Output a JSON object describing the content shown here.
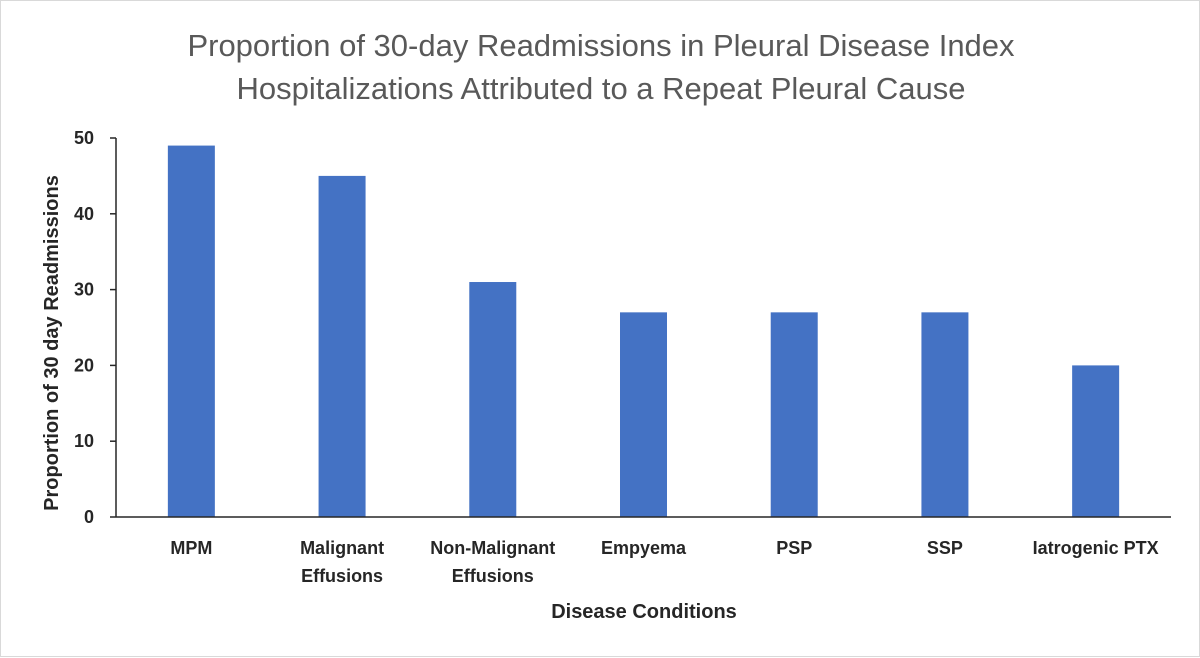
{
  "chart_data": {
    "type": "bar",
    "title_lines": [
      "Proportion of 30-day Readmissions  in Pleural Disease Index",
      "Hospitalizations Attributed to a Repeat Pleural Cause"
    ],
    "xlabel": "Disease Conditions",
    "ylabel": "Proportion of 30 day Readmissions",
    "ylim": [
      0,
      50
    ],
    "yticks": [
      "0",
      "10",
      "20",
      "30",
      "40",
      "50"
    ],
    "categories": [
      [
        "MPM"
      ],
      [
        "Malignant",
        "Effusions"
      ],
      [
        "Non-Malignant",
        "Effusions"
      ],
      [
        "Empyema"
      ],
      [
        "PSP"
      ],
      [
        "SSP"
      ],
      [
        "Iatrogenic PTX"
      ]
    ],
    "values": [
      49,
      45,
      31,
      27,
      27,
      27,
      20
    ],
    "grid": false,
    "bar_color": "#4472c4"
  }
}
